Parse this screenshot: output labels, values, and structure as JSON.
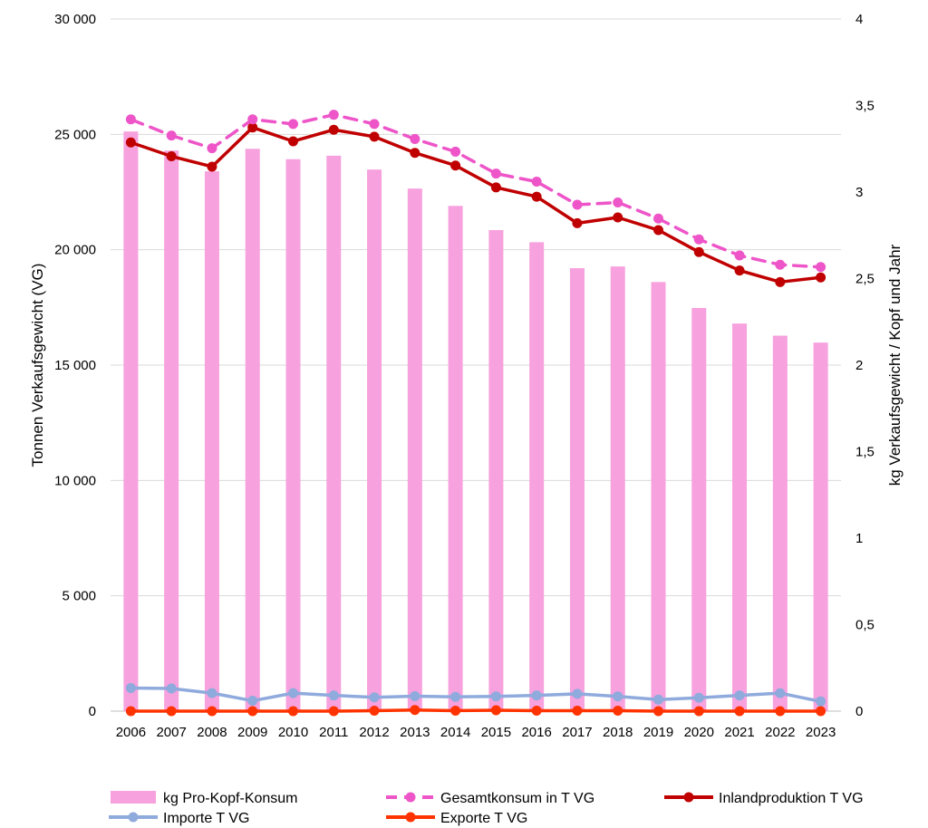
{
  "chart_data": {
    "type": "bar+line",
    "categories": [
      "2006",
      "2007",
      "2008",
      "2009",
      "2010",
      "2011",
      "2012",
      "2013",
      "2014",
      "2015",
      "2016",
      "2017",
      "2018",
      "2019",
      "2020",
      "2021",
      "2022",
      "2023"
    ],
    "y_left": {
      "label": "Tonnen Verkaufsgewicht (VG)",
      "min": 0,
      "max": 30000,
      "step": 5000,
      "ticks": [
        "0",
        "5 000",
        "10 000",
        "15 000",
        "20 000",
        "25 000",
        "30 000"
      ]
    },
    "y_right": {
      "label": "kg Verkaufsgewicht / Kopf und Jahr",
      "min": 0,
      "max": 4,
      "step": 0.5,
      "ticks": [
        "0",
        "0,5",
        "1",
        "1,5",
        "2",
        "2,5",
        "3",
        "3,5",
        "4"
      ]
    },
    "grid": true,
    "legend_position": "bottom",
    "bars": {
      "name": "kg Pro-Kopf-Konsum",
      "axis": "right",
      "color": "#F7A1DE",
      "values": [
        3.35,
        3.24,
        3.12,
        3.25,
        3.19,
        3.21,
        3.13,
        3.02,
        2.92,
        2.78,
        2.71,
        2.56,
        2.57,
        2.48,
        2.33,
        2.24,
        2.17,
        2.13
      ]
    },
    "series": [
      {
        "name": "Gesamtkonsum in T VG",
        "axis": "left",
        "color": "#EE55C8",
        "dashed": true,
        "values": [
          25650,
          24950,
          24400,
          25650,
          25450,
          25850,
          25450,
          24800,
          24250,
          23300,
          22950,
          21950,
          22050,
          21350,
          20450,
          19750,
          19350,
          19250
        ]
      },
      {
        "name": "Inlandproduktion T VG",
        "axis": "left",
        "color": "#C00000",
        "dashed": false,
        "values": [
          24650,
          24050,
          23600,
          25300,
          24700,
          25200,
          24900,
          24200,
          23650,
          22700,
          22300,
          21150,
          21400,
          20850,
          19900,
          19100,
          18600,
          18800
        ]
      },
      {
        "name": "Importe T VG",
        "axis": "left",
        "color": "#8FAADC",
        "dashed": false,
        "values": [
          1000,
          980,
          780,
          450,
          780,
          680,
          600,
          650,
          620,
          640,
          680,
          750,
          640,
          500,
          580,
          680,
          780,
          420
        ]
      },
      {
        "name": "Exporte T VG",
        "axis": "left",
        "color": "#FF3300",
        "dashed": false,
        "values": [
          0,
          0,
          0,
          0,
          0,
          0,
          20,
          50,
          20,
          40,
          20,
          20,
          20,
          0,
          0,
          0,
          0,
          0
        ]
      }
    ],
    "legend": [
      "kg Pro-Kopf-Konsum",
      "Gesamtkonsum in T VG",
      "Inlandproduktion T VG",
      "Importe T VG",
      "Exporte T VG"
    ]
  }
}
